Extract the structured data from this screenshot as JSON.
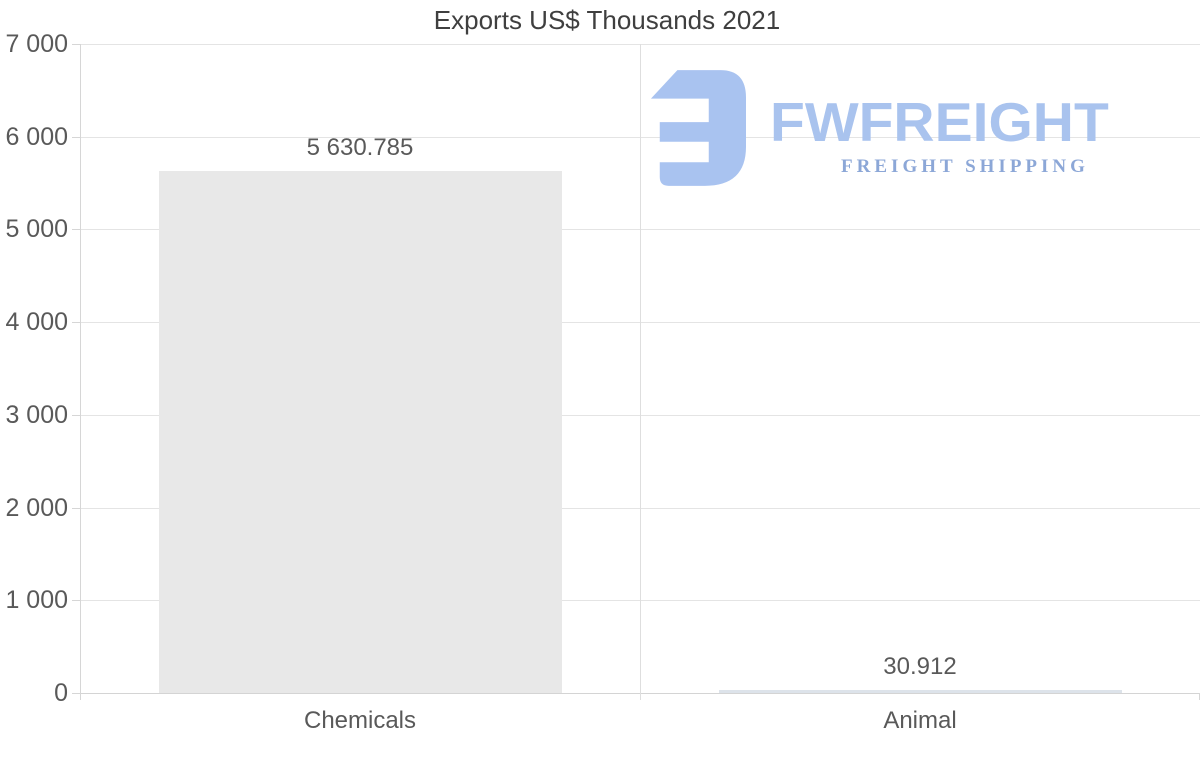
{
  "title": "Exports US$ Thousands 2021",
  "logo": {
    "brand": "FWFREIGHT",
    "tagline": "FREIGHT SHIPPING",
    "icon_color": "#a9c3f0",
    "brand_color": "#a9c3ee",
    "tagline_color": "#8ca7d7"
  },
  "chart_data": {
    "type": "bar",
    "title": "Exports US$ Thousands 2021",
    "categories": [
      "Chemicals",
      "Animal"
    ],
    "values": [
      5630.785,
      30.912
    ],
    "value_labels": [
      "5 630.785",
      "30.912"
    ],
    "bar_colors": [
      "#e8e8e8",
      "#dde3ea"
    ],
    "xlabel": "",
    "ylabel": "",
    "ylim": [
      0,
      7000
    ],
    "ytick_interval": 1000,
    "ytick_labels": [
      "7 000",
      "6 000",
      "5 000",
      "4 000",
      "3 000",
      "2 000",
      "1 000",
      "0"
    ],
    "grid": true,
    "legend": "none"
  },
  "colors": {
    "title_text": "#3f3f3f",
    "axis_text": "#595959",
    "gridline": "#e4e4e4",
    "baseline": "#d4d4d4"
  }
}
